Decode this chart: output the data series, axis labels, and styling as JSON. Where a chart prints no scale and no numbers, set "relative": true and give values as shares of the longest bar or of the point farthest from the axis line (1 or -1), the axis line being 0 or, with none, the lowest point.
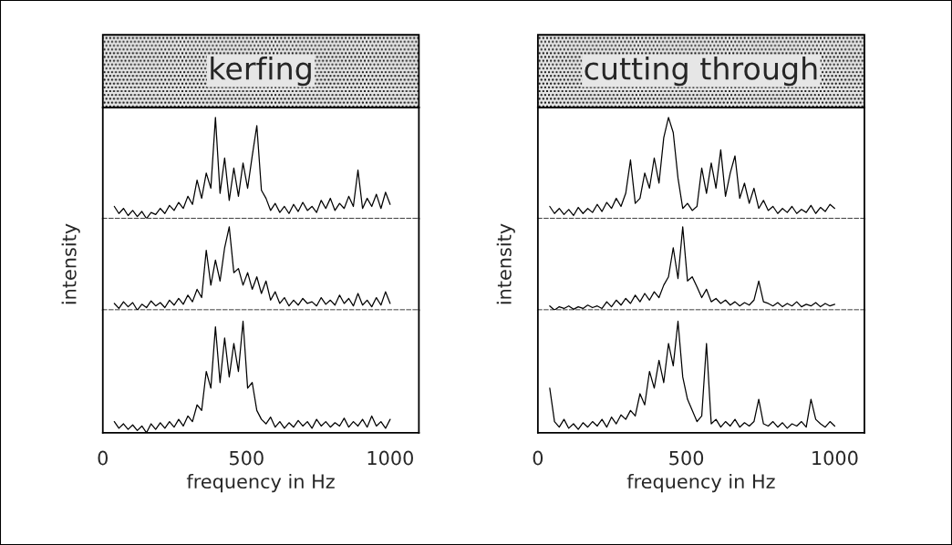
{
  "chart_data": [
    {
      "type": "line",
      "title": "kerfing",
      "relative": true,
      "xlim": [
        0,
        1100
      ],
      "tick_labels": false,
      "x": [
        40,
        56,
        72,
        88,
        104,
        120,
        136,
        152,
        168,
        184,
        200,
        216,
        232,
        248,
        264,
        280,
        296,
        312,
        328,
        344,
        360,
        376,
        392,
        408,
        424,
        440,
        456,
        472,
        488,
        504,
        520,
        536,
        552,
        568,
        584,
        600,
        616,
        632,
        648,
        664,
        680,
        696,
        712,
        728,
        744,
        760,
        776,
        792,
        808,
        824,
        840,
        856,
        872,
        888,
        904,
        920,
        936,
        952,
        968,
        984,
        1000
      ],
      "series": [
        {
          "color": "#000000",
          "values": [
            0.12,
            0.05,
            0.1,
            0.03,
            0.08,
            0.02,
            0.07,
            0.0,
            0.06,
            0.04,
            0.1,
            0.05,
            0.13,
            0.08,
            0.16,
            0.1,
            0.22,
            0.14,
            0.38,
            0.2,
            0.45,
            0.3,
            1.0,
            0.25,
            0.6,
            0.18,
            0.5,
            0.22,
            0.55,
            0.3,
            0.62,
            0.92,
            0.28,
            0.2,
            0.08,
            0.15,
            0.06,
            0.12,
            0.05,
            0.14,
            0.07,
            0.16,
            0.08,
            0.12,
            0.06,
            0.18,
            0.1,
            0.2,
            0.08,
            0.15,
            0.1,
            0.22,
            0.12,
            0.48,
            0.1,
            0.2,
            0.12,
            0.24,
            0.1,
            0.26,
            0.14
          ]
        }
      ]
    },
    {
      "type": "line",
      "ylabel": "intensity",
      "relative": true,
      "xlim": [
        0,
        1100
      ],
      "tick_labels": false,
      "x": [
        40,
        56,
        72,
        88,
        104,
        120,
        136,
        152,
        168,
        184,
        200,
        216,
        232,
        248,
        264,
        280,
        296,
        312,
        328,
        344,
        360,
        376,
        392,
        408,
        424,
        440,
        456,
        472,
        488,
        504,
        520,
        536,
        552,
        568,
        584,
        600,
        616,
        632,
        648,
        664,
        680,
        696,
        712,
        728,
        744,
        760,
        776,
        792,
        808,
        824,
        840,
        856,
        872,
        888,
        904,
        920,
        936,
        952,
        968,
        984,
        1000
      ],
      "series": [
        {
          "color": "#000000",
          "values": [
            0.08,
            0.02,
            0.1,
            0.04,
            0.09,
            0.0,
            0.07,
            0.03,
            0.11,
            0.05,
            0.09,
            0.03,
            0.12,
            0.06,
            0.14,
            0.07,
            0.18,
            0.1,
            0.25,
            0.15,
            0.72,
            0.3,
            0.6,
            0.35,
            0.75,
            1.0,
            0.45,
            0.5,
            0.3,
            0.45,
            0.25,
            0.4,
            0.2,
            0.35,
            0.12,
            0.22,
            0.08,
            0.15,
            0.05,
            0.12,
            0.06,
            0.14,
            0.08,
            0.1,
            0.05,
            0.15,
            0.07,
            0.12,
            0.06,
            0.18,
            0.08,
            0.14,
            0.05,
            0.2,
            0.06,
            0.12,
            0.04,
            0.15,
            0.06,
            0.22,
            0.08
          ]
        }
      ]
    },
    {
      "type": "line",
      "xlabel": "frequency in Hz",
      "relative": true,
      "xlim": [
        0,
        1100
      ],
      "xticks": [
        0,
        500,
        1000
      ],
      "tick_labels": "x",
      "x": [
        40,
        56,
        72,
        88,
        104,
        120,
        136,
        152,
        168,
        184,
        200,
        216,
        232,
        248,
        264,
        280,
        296,
        312,
        328,
        344,
        360,
        376,
        392,
        408,
        424,
        440,
        456,
        472,
        488,
        504,
        520,
        536,
        552,
        568,
        584,
        600,
        616,
        632,
        648,
        664,
        680,
        696,
        712,
        728,
        744,
        760,
        776,
        792,
        808,
        824,
        840,
        856,
        872,
        888,
        904,
        920,
        936,
        952,
        968,
        984,
        1000
      ],
      "series": [
        {
          "color": "#000000",
          "values": [
            0.1,
            0.04,
            0.08,
            0.03,
            0.07,
            0.02,
            0.06,
            0.0,
            0.08,
            0.03,
            0.09,
            0.04,
            0.1,
            0.05,
            0.12,
            0.06,
            0.15,
            0.1,
            0.25,
            0.2,
            0.55,
            0.4,
            0.95,
            0.45,
            0.85,
            0.5,
            0.8,
            0.55,
            1.0,
            0.4,
            0.45,
            0.2,
            0.12,
            0.08,
            0.14,
            0.05,
            0.1,
            0.04,
            0.09,
            0.05,
            0.11,
            0.06,
            0.1,
            0.04,
            0.12,
            0.06,
            0.1,
            0.05,
            0.09,
            0.06,
            0.13,
            0.05,
            0.1,
            0.06,
            0.12,
            0.05,
            0.15,
            0.06,
            0.1,
            0.04,
            0.12
          ]
        }
      ]
    },
    {
      "type": "line",
      "title": "cutting through",
      "relative": true,
      "xlim": [
        0,
        1100
      ],
      "tick_labels": false,
      "x": [
        40,
        56,
        72,
        88,
        104,
        120,
        136,
        152,
        168,
        184,
        200,
        216,
        232,
        248,
        264,
        280,
        296,
        312,
        328,
        344,
        360,
        376,
        392,
        408,
        424,
        440,
        456,
        472,
        488,
        504,
        520,
        536,
        552,
        568,
        584,
        600,
        616,
        632,
        648,
        664,
        680,
        696,
        712,
        728,
        744,
        760,
        776,
        792,
        808,
        824,
        840,
        856,
        872,
        888,
        904,
        920,
        936,
        952,
        968,
        984,
        1000
      ],
      "series": [
        {
          "color": "#000000",
          "values": [
            0.12,
            0.05,
            0.1,
            0.04,
            0.09,
            0.03,
            0.11,
            0.05,
            0.1,
            0.06,
            0.14,
            0.07,
            0.16,
            0.1,
            0.2,
            0.12,
            0.25,
            0.58,
            0.15,
            0.2,
            0.45,
            0.3,
            0.6,
            0.35,
            0.8,
            1.0,
            0.85,
            0.4,
            0.1,
            0.15,
            0.08,
            0.12,
            0.5,
            0.25,
            0.55,
            0.3,
            0.68,
            0.22,
            0.45,
            0.62,
            0.2,
            0.35,
            0.15,
            0.3,
            0.1,
            0.18,
            0.08,
            0.12,
            0.05,
            0.1,
            0.06,
            0.12,
            0.05,
            0.09,
            0.06,
            0.13,
            0.05,
            0.11,
            0.07,
            0.14,
            0.1
          ]
        }
      ]
    },
    {
      "type": "line",
      "ylabel": "intensity",
      "relative": true,
      "xlim": [
        0,
        1100
      ],
      "tick_labels": false,
      "x": [
        40,
        56,
        72,
        88,
        104,
        120,
        136,
        152,
        168,
        184,
        200,
        216,
        232,
        248,
        264,
        280,
        296,
        312,
        328,
        344,
        360,
        376,
        392,
        408,
        424,
        440,
        456,
        472,
        488,
        504,
        520,
        536,
        552,
        568,
        584,
        600,
        616,
        632,
        648,
        664,
        680,
        696,
        712,
        728,
        744,
        760,
        776,
        792,
        808,
        824,
        840,
        856,
        872,
        888,
        904,
        920,
        936,
        952,
        968,
        984,
        1000
      ],
      "series": [
        {
          "color": "#000000",
          "values": [
            0.05,
            0.0,
            0.04,
            0.02,
            0.05,
            0.01,
            0.04,
            0.02,
            0.06,
            0.03,
            0.05,
            0.02,
            0.1,
            0.04,
            0.12,
            0.06,
            0.14,
            0.08,
            0.18,
            0.1,
            0.2,
            0.12,
            0.22,
            0.15,
            0.3,
            0.4,
            0.75,
            0.38,
            1.0,
            0.35,
            0.4,
            0.28,
            0.15,
            0.25,
            0.1,
            0.14,
            0.08,
            0.12,
            0.06,
            0.1,
            0.05,
            0.09,
            0.06,
            0.12,
            0.35,
            0.1,
            0.08,
            0.05,
            0.09,
            0.04,
            0.08,
            0.05,
            0.1,
            0.04,
            0.07,
            0.05,
            0.09,
            0.04,
            0.08,
            0.05,
            0.07
          ]
        }
      ]
    },
    {
      "type": "line",
      "xlabel": "frequency in Hz",
      "relative": true,
      "xlim": [
        0,
        1100
      ],
      "xticks": [
        0,
        500,
        1000
      ],
      "tick_labels": "x",
      "x": [
        40,
        56,
        72,
        88,
        104,
        120,
        136,
        152,
        168,
        184,
        200,
        216,
        232,
        248,
        264,
        280,
        296,
        312,
        328,
        344,
        360,
        376,
        392,
        408,
        424,
        440,
        456,
        472,
        488,
        504,
        520,
        536,
        552,
        568,
        584,
        600,
        616,
        632,
        648,
        664,
        680,
        696,
        712,
        728,
        744,
        760,
        776,
        792,
        808,
        824,
        840,
        856,
        872,
        888,
        904,
        920,
        936,
        952,
        968,
        984,
        1000
      ],
      "series": [
        {
          "color": "#000000",
          "values": [
            0.4,
            0.1,
            0.05,
            0.12,
            0.04,
            0.08,
            0.03,
            0.09,
            0.05,
            0.1,
            0.06,
            0.12,
            0.05,
            0.14,
            0.08,
            0.16,
            0.12,
            0.2,
            0.15,
            0.35,
            0.25,
            0.55,
            0.4,
            0.65,
            0.45,
            0.8,
            0.6,
            1.0,
            0.5,
            0.3,
            0.2,
            0.1,
            0.15,
            0.8,
            0.08,
            0.12,
            0.05,
            0.1,
            0.06,
            0.12,
            0.05,
            0.09,
            0.06,
            0.1,
            0.3,
            0.08,
            0.06,
            0.1,
            0.05,
            0.09,
            0.04,
            0.08,
            0.06,
            0.1,
            0.05,
            0.3,
            0.12,
            0.08,
            0.05,
            0.1,
            0.06
          ]
        }
      ]
    }
  ]
}
